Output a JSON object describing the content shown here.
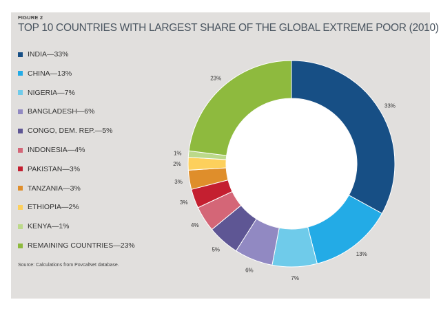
{
  "figure_label": "FIGURE 2",
  "source": "Source: Calculations from PovcalNet database.",
  "chart_data": {
    "type": "pie",
    "donut": true,
    "title": "TOP 10 COUNTRIES WITH LARGEST SHARE OF THE GLOBAL EXTREME POOR (2010)",
    "slices": [
      {
        "name": "INDIA",
        "value": 33,
        "label": "33%",
        "legend": "INDIA—33%",
        "color": "#174f85"
      },
      {
        "name": "CHINA",
        "value": 13,
        "label": "13%",
        "legend": "CHINA—13%",
        "color": "#23abe6"
      },
      {
        "name": "NIGERIA",
        "value": 7,
        "label": "7%",
        "legend": "NIGERIA—7%",
        "color": "#6fcbea"
      },
      {
        "name": "BANGLADESH",
        "value": 6,
        "label": "6%",
        "legend": "BANGLADESH—6%",
        "color": "#9189c2"
      },
      {
        "name": "CONGO, DEM. REP.",
        "value": 5,
        "label": "5%",
        "legend": "CONGO, DEM. REP.—5%",
        "color": "#5e5694"
      },
      {
        "name": "INDONESIA",
        "value": 4,
        "label": "4%",
        "legend": "INDONESIA—4%",
        "color": "#d46677"
      },
      {
        "name": "PAKISTAN",
        "value": 3,
        "label": "3%",
        "legend": "PAKISTAN—3%",
        "color": "#c41f30"
      },
      {
        "name": "TANZANIA",
        "value": 3,
        "label": "3%",
        "legend": "TANZANIA—3%",
        "color": "#df8e2b"
      },
      {
        "name": "ETHIOPIA",
        "value": 2,
        "label": "2%",
        "legend": "ETHIOPIA—2%",
        "color": "#fdd05c"
      },
      {
        "name": "KENYA",
        "value": 1,
        "label": "1%",
        "legend": "KENYA—1%",
        "color": "#bcd98a"
      },
      {
        "name": "REMAINING COUNTRIES",
        "value": 23,
        "label": "23%",
        "legend": "REMAINING COUNTRIES—23%",
        "color": "#8eba3e"
      }
    ],
    "legend_position": "left"
  }
}
